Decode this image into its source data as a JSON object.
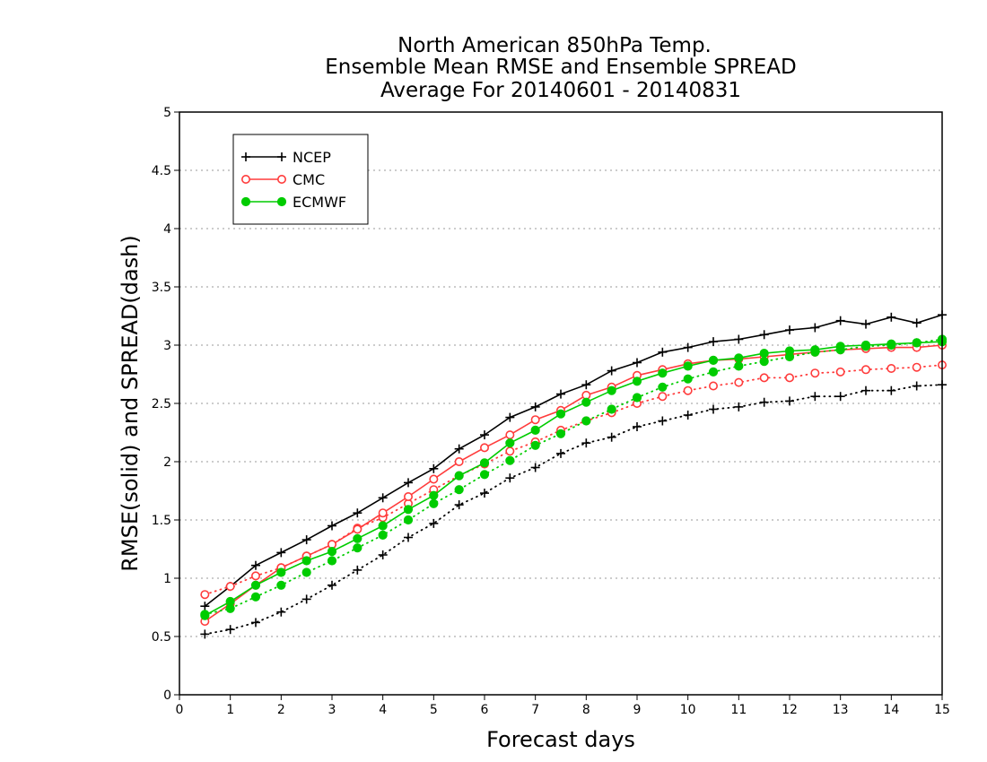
{
  "chart_data": {
    "type": "line",
    "title_lines": [
      "North American 850hPa Temp.",
      "Ensemble Mean RMSE and Ensemble SPREAD",
      "Average For 20140601 - 20140831"
    ],
    "xlabel": "Forecast days",
    "ylabel": "RMSE(solid) and SPREAD(dash)",
    "xlim": [
      0,
      15
    ],
    "ylim": [
      0,
      5
    ],
    "x_ticks": [
      "0",
      "1",
      "2",
      "3",
      "4",
      "5",
      "6",
      "7",
      "8",
      "9",
      "10",
      "11",
      "12",
      "13",
      "14",
      "15"
    ],
    "y_ticks": [
      "0",
      "0.5",
      "1",
      "1.5",
      "2",
      "2.5",
      "3",
      "3.5",
      "4",
      "4.5",
      "5"
    ],
    "grid": true,
    "legend_position": "top-left",
    "x": [
      0.5,
      1,
      1.5,
      2,
      2.5,
      3,
      3.5,
      4,
      4.5,
      5,
      5.5,
      6,
      6.5,
      7,
      7.5,
      8,
      8.5,
      9,
      9.5,
      10,
      10.5,
      11,
      11.5,
      12,
      12.5,
      13,
      13.5,
      14,
      14.5,
      15
    ],
    "series": [
      {
        "name": "NCEP",
        "color": "#000000",
        "marker": "plus",
        "rmse": [
          0.76,
          0.93,
          1.11,
          1.22,
          1.33,
          1.45,
          1.56,
          1.69,
          1.82,
          1.94,
          2.11,
          2.23,
          2.38,
          2.47,
          2.58,
          2.66,
          2.78,
          2.85,
          2.94,
          2.98,
          3.03,
          3.05,
          3.09,
          3.13,
          3.15,
          3.21,
          3.18,
          3.24,
          3.19,
          3.26
        ],
        "spread": [
          0.52,
          0.56,
          0.62,
          0.71,
          0.82,
          0.94,
          1.07,
          1.2,
          1.35,
          1.47,
          1.63,
          1.73,
          1.86,
          1.95,
          2.07,
          2.16,
          2.21,
          2.3,
          2.35,
          2.4,
          2.45,
          2.47,
          2.51,
          2.52,
          2.56,
          2.56,
          2.61,
          2.61,
          2.65,
          2.66
        ]
      },
      {
        "name": "CMC",
        "color": "#ff3b3b",
        "marker": "open-circle",
        "rmse": [
          0.63,
          0.78,
          0.94,
          1.09,
          1.19,
          1.29,
          1.42,
          1.56,
          1.7,
          1.85,
          2.0,
          2.12,
          2.23,
          2.36,
          2.44,
          2.57,
          2.64,
          2.74,
          2.79,
          2.84,
          2.87,
          2.88,
          2.9,
          2.92,
          2.94,
          2.96,
          2.97,
          2.98,
          2.98,
          3.0
        ],
        "spread": [
          0.86,
          0.93,
          1.02,
          1.09,
          1.19,
          1.29,
          1.43,
          1.52,
          1.64,
          1.76,
          1.88,
          1.98,
          2.09,
          2.17,
          2.27,
          2.35,
          2.42,
          2.5,
          2.56,
          2.61,
          2.65,
          2.68,
          2.72,
          2.72,
          2.76,
          2.77,
          2.79,
          2.8,
          2.81,
          2.83
        ]
      },
      {
        "name": "ECMWF",
        "color": "#00cc00",
        "marker": "filled-circle",
        "rmse": [
          0.68,
          0.8,
          0.94,
          1.05,
          1.15,
          1.23,
          1.34,
          1.45,
          1.59,
          1.71,
          1.88,
          1.99,
          2.16,
          2.27,
          2.41,
          2.51,
          2.61,
          2.69,
          2.76,
          2.82,
          2.87,
          2.89,
          2.93,
          2.95,
          2.96,
          2.99,
          3.0,
          3.01,
          3.02,
          3.03
        ],
        "spread": [
          0.69,
          0.74,
          0.84,
          0.94,
          1.05,
          1.15,
          1.26,
          1.37,
          1.5,
          1.64,
          1.76,
          1.89,
          2.01,
          2.14,
          2.24,
          2.35,
          2.45,
          2.55,
          2.64,
          2.71,
          2.77,
          2.82,
          2.86,
          2.9,
          2.94,
          2.96,
          2.99,
          3.0,
          3.02,
          3.05
        ]
      }
    ]
  }
}
